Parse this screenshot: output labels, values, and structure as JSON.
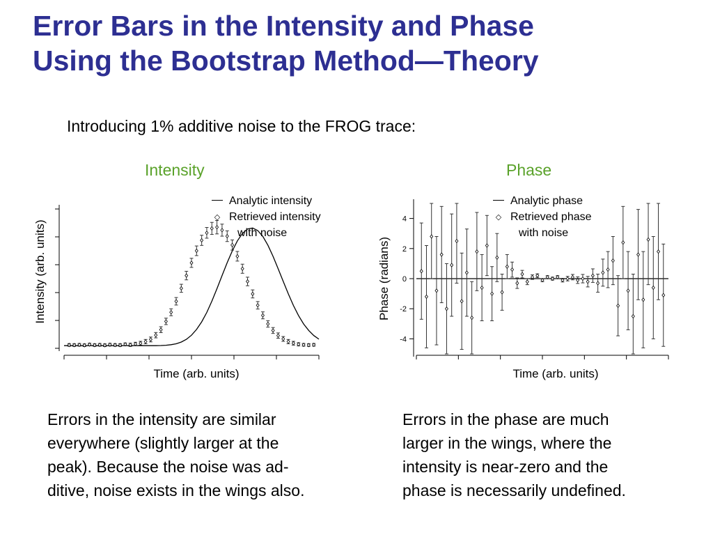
{
  "slide": {
    "title_line1": "Error Bars in the Intensity and Phase",
    "title_line2": "Using the Bootstrap Method—Theory",
    "intro": "Introducing 1% additive noise to the FROG trace:",
    "intensity_caption": "Errors in the intensity are similar\neverywhere (slightly larger at the\npeak). Because the noise was ad-\nditive, noise exists in the wings also.",
    "phase_caption": "Errors in the phase are much\nlarger in the wings, where the\nintensity is near-zero and the\nphase is necessarily undefined."
  },
  "colors": {
    "title": "#2d2f92",
    "chart_title": "#5aa22a",
    "ink": "#000000"
  },
  "chart_data": [
    {
      "type": "scatter",
      "title": "Intensity",
      "xlabel": "Time (arb. units)",
      "ylabel": "Intensity (arb. units)",
      "ylim": [
        -0.02,
        1.02
      ],
      "ytick_labels_shown": false,
      "grid": false,
      "legend": {
        "placement": "top-right",
        "line_label": "Analytic intensity",
        "marker_label_1": "Retrieved intensity",
        "marker_label_2": "with noise"
      },
      "series": [
        {
          "name": "Analytic intensity",
          "style": "line",
          "x": [
            0,
            2,
            4,
            6,
            8,
            10,
            12,
            14,
            16,
            18,
            20,
            22,
            24,
            26,
            28,
            30,
            32,
            34,
            36,
            38,
            40,
            42,
            44,
            46,
            48,
            50,
            52,
            54,
            56,
            58,
            60,
            62,
            64,
            66,
            68,
            70,
            72,
            74,
            76,
            78,
            80,
            82,
            84,
            86,
            88,
            90,
            92,
            94,
            96,
            98,
            100
          ],
          "y": [
            0,
            0,
            0,
            0,
            0,
            0,
            0,
            0,
            0,
            0,
            0,
            0,
            0,
            0,
            0,
            0,
            0,
            0,
            0,
            0.001,
            0.003,
            0.007,
            0.014,
            0.027,
            0.047,
            0.078,
            0.121,
            0.177,
            0.248,
            0.332,
            0.425,
            0.523,
            0.618,
            0.707,
            0.782,
            0.838,
            0.871,
            0.878,
            0.859,
            0.815,
            0.749,
            0.667,
            0.575,
            0.479,
            0.386,
            0.3,
            0.225,
            0.162,
            0.113,
            0.075,
            0.048
          ]
        },
        {
          "name": "Retrieved intensity with noise",
          "style": "markers-with-error-bars",
          "x": [
            2,
            4,
            6,
            8,
            10,
            12,
            14,
            16,
            18,
            20,
            22,
            24,
            26,
            28,
            30,
            32,
            34,
            36,
            38,
            40,
            42,
            44,
            46,
            48,
            50,
            52,
            54,
            56,
            58,
            60,
            62,
            64,
            66,
            68,
            70,
            72,
            74,
            76,
            78,
            80,
            82,
            84,
            86,
            88,
            90,
            92,
            94,
            96,
            98
          ],
          "y": [
            0.005,
            0.004,
            0.006,
            0.003,
            0.008,
            0.004,
            0.006,
            0.003,
            0.007,
            0.005,
            0.004,
            0.01,
            0.006,
            0.012,
            0.018,
            0.03,
            0.046,
            0.078,
            0.119,
            0.181,
            0.249,
            0.331,
            0.428,
            0.523,
            0.618,
            0.708,
            0.786,
            0.842,
            0.875,
            0.884,
            0.862,
            0.817,
            0.751,
            0.667,
            0.574,
            0.479,
            0.386,
            0.301,
            0.226,
            0.162,
            0.113,
            0.075,
            0.05,
            0.03,
            0.018,
            0.01,
            0.006,
            0.004,
            0.006
          ],
          "error": [
            0.01,
            0.01,
            0.01,
            0.01,
            0.01,
            0.01,
            0.01,
            0.01,
            0.01,
            0.01,
            0.01,
            0.01,
            0.012,
            0.013,
            0.014,
            0.016,
            0.018,
            0.02,
            0.022,
            0.024,
            0.026,
            0.028,
            0.03,
            0.032,
            0.034,
            0.036,
            0.038,
            0.04,
            0.045,
            0.05,
            0.045,
            0.04,
            0.038,
            0.036,
            0.034,
            0.032,
            0.03,
            0.028,
            0.026,
            0.024,
            0.022,
            0.02,
            0.018,
            0.016,
            0.014,
            0.012,
            0.01,
            0.01,
            0.01
          ]
        }
      ]
    },
    {
      "type": "scatter",
      "title": "Phase",
      "xlabel": "Time (arb. units)",
      "ylabel": "Phase (radians)",
      "ylim": [
        -5,
        5
      ],
      "yticks": [
        4,
        2,
        0,
        -2,
        -4
      ],
      "grid": false,
      "legend": {
        "placement": "top-right",
        "line_label": "Analytic phase",
        "marker_label_1": "Retrieved phase",
        "marker_label_2": "with noise"
      },
      "series": [
        {
          "name": "Analytic phase",
          "style": "line",
          "x": [
            0,
            100
          ],
          "y": [
            0,
            0
          ]
        },
        {
          "name": "Retrieved phase with noise",
          "style": "markers-with-error-bars",
          "x": [
            2,
            4,
            6,
            8,
            10,
            12,
            14,
            16,
            18,
            20,
            22,
            24,
            26,
            28,
            30,
            32,
            34,
            36,
            38,
            40,
            42,
            44,
            46,
            48,
            50,
            52,
            54,
            56,
            58,
            60,
            62,
            64,
            66,
            68,
            70,
            72,
            74,
            76,
            78,
            80,
            82,
            84,
            86,
            88,
            90,
            92,
            94,
            96,
            98
          ],
          "y": [
            0.5,
            -1.2,
            2.8,
            -0.8,
            1.6,
            -2.0,
            0.9,
            2.5,
            -1.5,
            0.4,
            -2.6,
            1.8,
            -0.6,
            2.2,
            -1.0,
            1.4,
            -0.9,
            0.8,
            0.6,
            -0.3,
            0.3,
            -0.2,
            0.1,
            0.2,
            -0.1,
            0.1,
            0.0,
            0.1,
            -0.1,
            0.0,
            0.1,
            -0.1,
            0.0,
            -0.2,
            0.2,
            -0.3,
            0.4,
            0.6,
            1.2,
            -1.8,
            2.4,
            -0.8,
            -2.5,
            1.6,
            -1.4,
            2.6,
            -0.6,
            1.8,
            -1.1
          ],
          "error": [
            3.2,
            3.4,
            2.8,
            3.6,
            3.2,
            3.0,
            3.4,
            2.8,
            3.2,
            2.9,
            2.4,
            2.6,
            2.2,
            2.0,
            1.8,
            1.6,
            1.2,
            0.8,
            0.5,
            0.35,
            0.25,
            0.2,
            0.15,
            0.12,
            0.1,
            0.1,
            0.1,
            0.1,
            0.12,
            0.15,
            0.18,
            0.22,
            0.28,
            0.35,
            0.45,
            0.6,
            0.9,
            1.2,
            1.6,
            2.0,
            2.4,
            2.6,
            2.8,
            3.0,
            3.2,
            3.0,
            3.4,
            3.2,
            3.4
          ]
        }
      ]
    }
  ]
}
